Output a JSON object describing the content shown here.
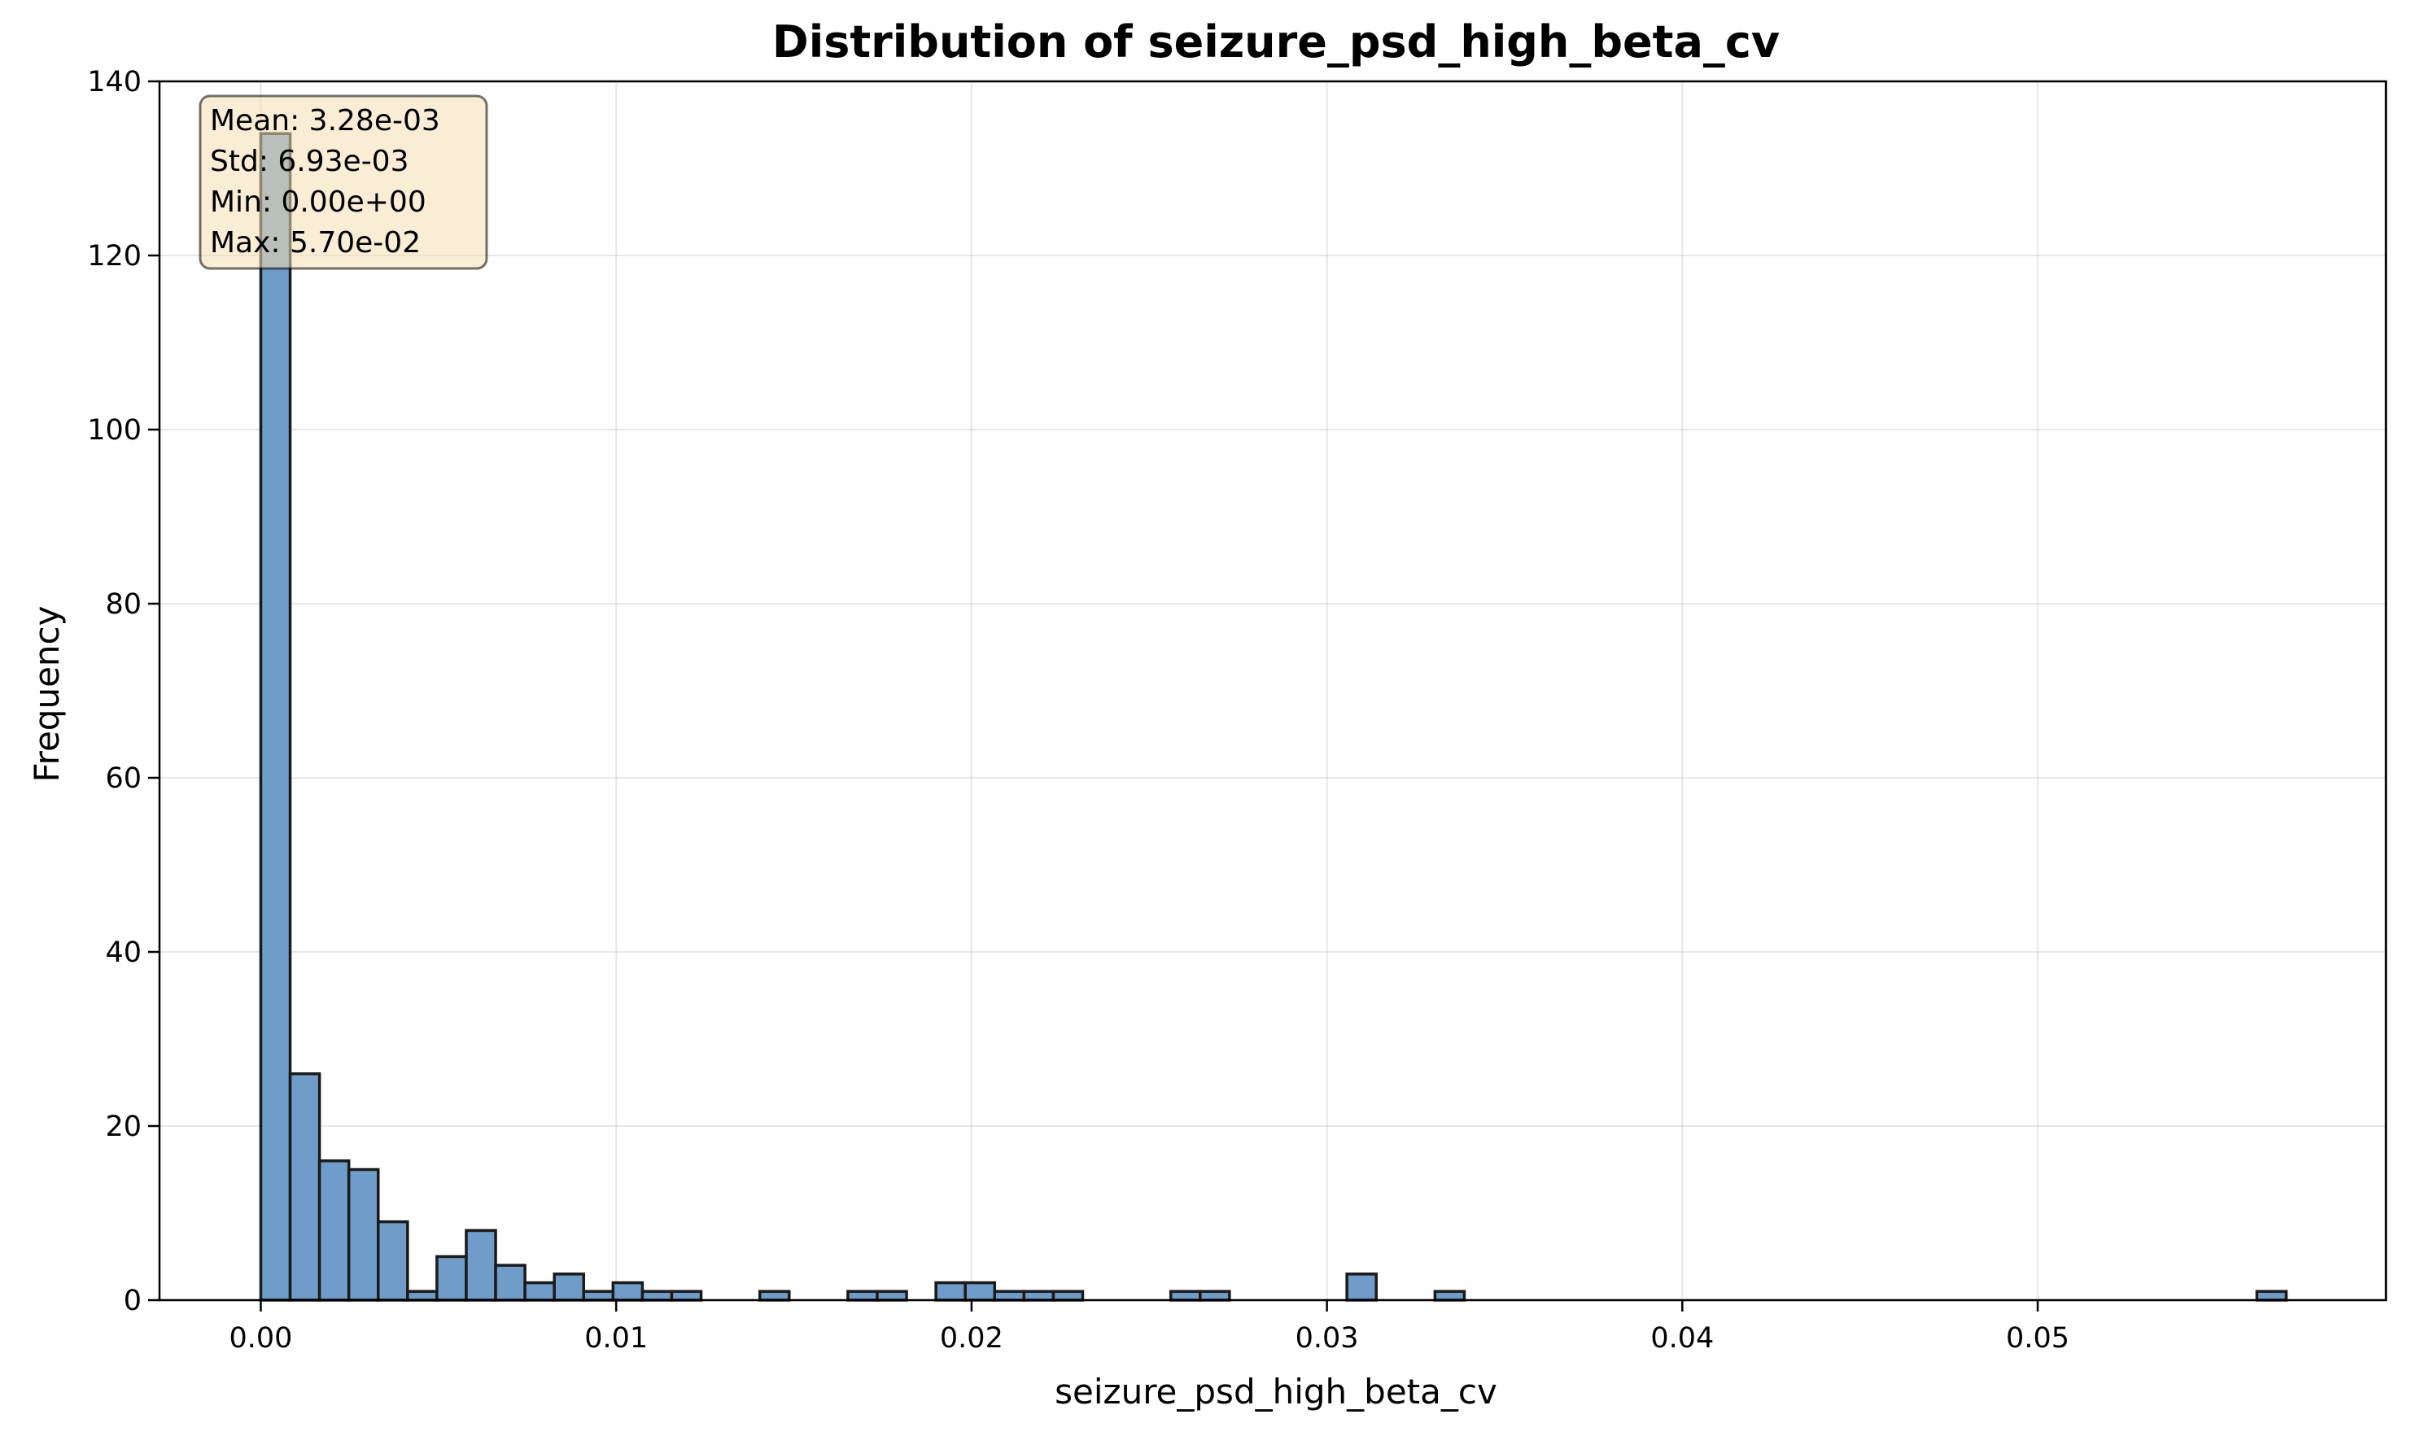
{
  "chart_data": {
    "type": "bar",
    "title": "Distribution of seizure_psd_high_beta_cv",
    "xlabel": "seizure_psd_high_beta_cv",
    "ylabel": "Frequency",
    "xlim": [
      -0.00285,
      0.0598
    ],
    "ylim": [
      0,
      140
    ],
    "grid": true,
    "bar_color": "#6f9cc8",
    "bar_edge_color": "#1a1a1a",
    "x_ticks": [
      {
        "value": 0.0,
        "label": "0.00"
      },
      {
        "value": 0.01,
        "label": "0.01"
      },
      {
        "value": 0.02,
        "label": "0.02"
      },
      {
        "value": 0.03,
        "label": "0.03"
      },
      {
        "value": 0.04,
        "label": "0.04"
      },
      {
        "value": 0.05,
        "label": "0.05"
      }
    ],
    "y_ticks": [
      {
        "value": 0,
        "label": "0"
      },
      {
        "value": 20,
        "label": "20"
      },
      {
        "value": 40,
        "label": "40"
      },
      {
        "value": 60,
        "label": "60"
      },
      {
        "value": 80,
        "label": "80"
      },
      {
        "value": 100,
        "label": "100"
      },
      {
        "value": 120,
        "label": "120"
      },
      {
        "value": 140,
        "label": "140"
      }
    ],
    "bin_start": 0.0,
    "bin_width": 0.000826,
    "counts": [
      134,
      26,
      16,
      15,
      9,
      1,
      5,
      8,
      4,
      2,
      3,
      1,
      2,
      1,
      1,
      0,
      0,
      1,
      0,
      0,
      1,
      1,
      0,
      2,
      2,
      1,
      1,
      1,
      0,
      0,
      0,
      1,
      1,
      0,
      0,
      0,
      0,
      3,
      0,
      0,
      1,
      0,
      0,
      0,
      0,
      0,
      0,
      0,
      0,
      0,
      0,
      0,
      0,
      0,
      0,
      0,
      0,
      0,
      0,
      0,
      0,
      0,
      0,
      0,
      0,
      0,
      0,
      0,
      1
    ],
    "stats_box": {
      "lines": [
        "Mean: 3.28e-03",
        "Std: 6.93e-03",
        "Min: 0.00e+00",
        "Max: 5.70e-02"
      ],
      "background": "#f5deb3",
      "placement": "top-left"
    }
  }
}
